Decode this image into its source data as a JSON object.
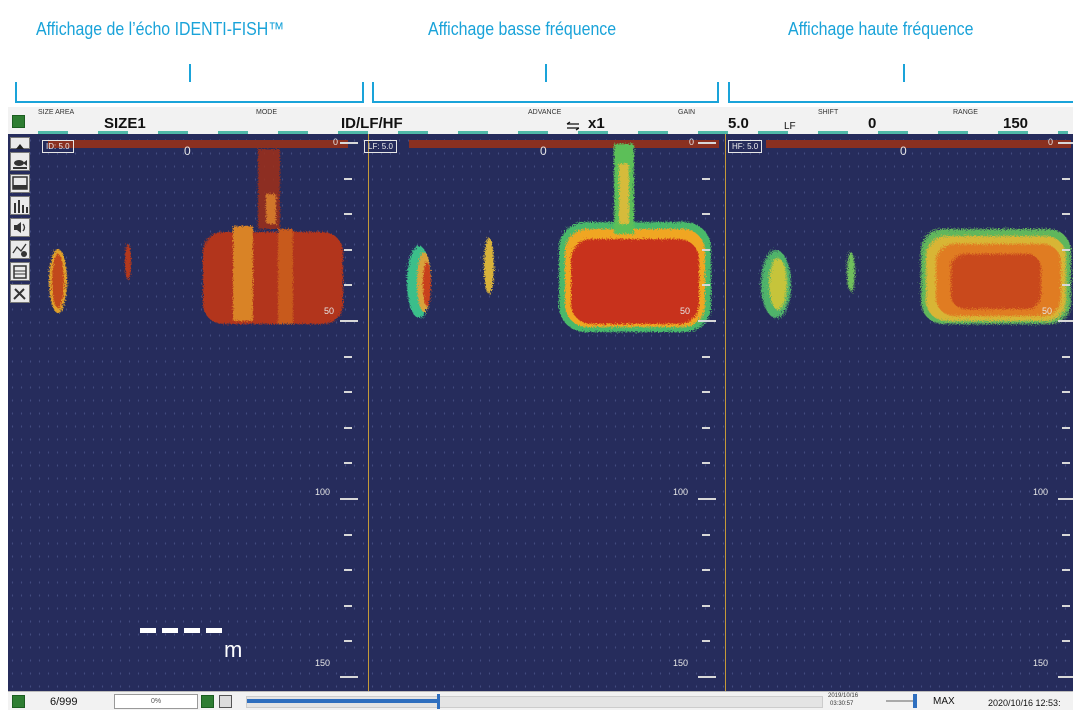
{
  "captions": {
    "id_echo": "Affichage de l’écho IDENTI-FISH™",
    "low_freq": "Affichage basse fréquence",
    "high_freq": "Affichage haute fréquence"
  },
  "topbar": {
    "size_area_label": "SIZE AREA",
    "size_area_value": "SIZE1",
    "mode_label": "MODE",
    "mode_value": "ID/LF/HF",
    "advance_label": "ADVANCE",
    "advance_value": "x1",
    "gain_label": "GAIN",
    "gain_value": "5.0",
    "gain_freq": "LF",
    "shift_label": "SHIFT",
    "shift_value": "0",
    "range_label": "RANGE",
    "range_value": "150"
  },
  "panels": [
    {
      "tag": "ID:  5.0",
      "zero": "0"
    },
    {
      "tag": "LF:  5.0",
      "zero": "0"
    },
    {
      "tag": "HF:  5.0",
      "zero": "0"
    }
  ],
  "depth_labels": {
    "d0": "0",
    "d50": "50",
    "d100": "100",
    "d150": "150"
  },
  "scale_unit": "m",
  "toolbar_icons": [
    "scroll-up-icon",
    "fish-size-icon",
    "display-mode-icon",
    "histogram-icon",
    "speaker-icon",
    "chart-settings-icon",
    "calendar-icon",
    "tools-icon"
  ],
  "bottombar": {
    "count": "6/999",
    "percent": "0%",
    "datetime_small_1": "2019/10/16",
    "datetime_small_2": "03:30:57",
    "max_label": "MAX",
    "datetime": "2020/10/16 12:53:"
  },
  "colors": {
    "background": "#262c5c",
    "caption": "#1aa3d9",
    "separator": "#c49a38",
    "echo_strong": "#b8371a",
    "echo_mid": "#e69a1f",
    "echo_weak": "#4caf50"
  }
}
